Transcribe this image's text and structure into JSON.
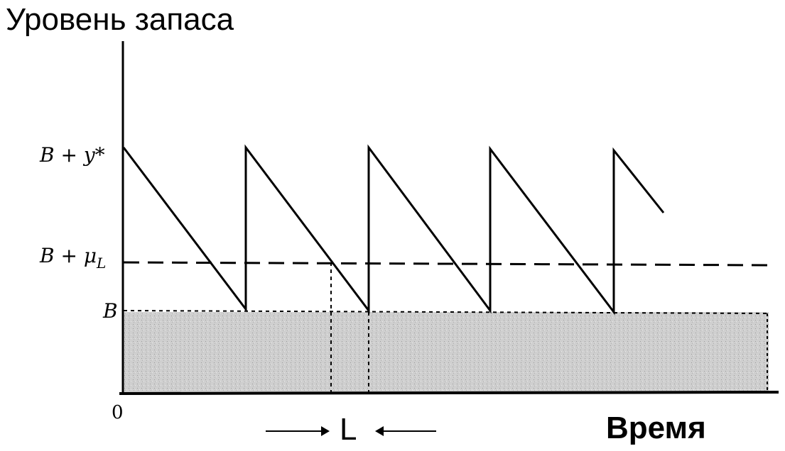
{
  "title": "Уровень запаса",
  "xlabel": "Время",
  "lead_time_label": "L",
  "origin_label": "0",
  "levels": {
    "top": "B + y*",
    "reorder": "B + μ",
    "reorder_sub": "L",
    "safety": "B"
  },
  "colors": {
    "line": "#000000",
    "stock_fill": "#c8c8c8",
    "background": "#ffffff"
  },
  "chart_data": {
    "type": "line",
    "title": "Уровень запаса",
    "xlabel": "Время",
    "ylabel": "",
    "series": [
      {
        "x": [
          0,
          1,
          1,
          2,
          2,
          3,
          3,
          4,
          4,
          4.4
        ],
        "y": [
          2,
          0,
          2,
          0,
          2,
          0,
          2,
          0,
          2,
          1.35
        ]
      }
    ],
    "reference_lines": [
      {
        "label": "B + μ_L",
        "y": 0.95,
        "style": "dashed"
      },
      {
        "label": "B",
        "y": 0,
        "style": "dashed"
      }
    ],
    "shaded_region": {
      "label": "B",
      "from_y": "axis",
      "to_y": 0
    },
    "lead_time_marker": {
      "label": "L",
      "from_x": 1.7,
      "to_x": 2
    }
  }
}
